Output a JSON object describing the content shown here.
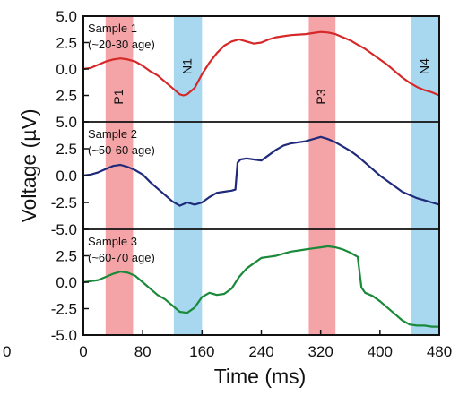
{
  "chart_data": {
    "type": "line",
    "xlabel": "Time (ms)",
    "ylabel": "Voltage (µV)",
    "x_ticks": [
      0,
      80,
      160,
      240,
      320,
      400,
      480
    ],
    "xlim": [
      0,
      480
    ],
    "y_ticks": [
      "-5.0",
      "-2.5",
      "0.0",
      "2.5",
      "5.0"
    ],
    "ylim": [
      -5,
      5
    ],
    "clipped_left_tick": "0",
    "bands": [
      {
        "label": "P1",
        "start": 30,
        "end": 67,
        "color": "#f4a3a6"
      },
      {
        "label": "N1",
        "start": 122,
        "end": 160,
        "color": "#a8d8f0"
      },
      {
        "label": "P3",
        "start": 304,
        "end": 340,
        "color": "#f4a3a6"
      },
      {
        "label": "N4",
        "start": 442,
        "end": 480,
        "color": "#a8d8f0"
      }
    ],
    "panels": [
      {
        "annotation_line1": "Sample 1",
        "annotation_line2": "(~20-30 age)",
        "color": "#d62828",
        "x": [
          0,
          10,
          20,
          30,
          40,
          50,
          60,
          70,
          80,
          90,
          100,
          110,
          120,
          130,
          135,
          140,
          150,
          160,
          170,
          180,
          190,
          200,
          210,
          220,
          230,
          240,
          250,
          260,
          270,
          280,
          290,
          300,
          310,
          320,
          330,
          340,
          350,
          360,
          370,
          380,
          390,
          400,
          410,
          420,
          430,
          440,
          450,
          460,
          470,
          480
        ],
        "y": [
          0.0,
          0.1,
          0.4,
          0.7,
          0.9,
          1.0,
          0.9,
          0.7,
          0.3,
          -0.2,
          -0.6,
          -1.2,
          -1.8,
          -2.4,
          -2.5,
          -2.4,
          -1.8,
          -0.5,
          0.6,
          1.5,
          2.2,
          2.6,
          2.8,
          2.6,
          2.4,
          2.5,
          2.8,
          3.0,
          3.1,
          3.2,
          3.25,
          3.3,
          3.4,
          3.5,
          3.45,
          3.3,
          3.0,
          2.7,
          2.3,
          1.9,
          1.4,
          0.9,
          0.4,
          -0.2,
          -0.8,
          -1.3,
          -1.7,
          -2.0,
          -2.2,
          -2.5
        ]
      },
      {
        "annotation_line1": "Sample 2",
        "annotation_line2": "(~50-60 age)",
        "color": "#1f2a7a",
        "x": [
          0,
          10,
          20,
          30,
          40,
          50,
          60,
          70,
          80,
          90,
          100,
          110,
          120,
          130,
          140,
          150,
          160,
          170,
          180,
          190,
          200,
          205,
          208,
          212,
          220,
          230,
          240,
          250,
          260,
          270,
          280,
          290,
          300,
          310,
          320,
          330,
          340,
          350,
          360,
          370,
          380,
          390,
          400,
          410,
          420,
          430,
          440,
          450,
          460,
          470,
          480
        ],
        "y": [
          0.0,
          0.1,
          0.3,
          0.6,
          0.9,
          1.0,
          0.8,
          0.5,
          0.1,
          -0.6,
          -1.2,
          -1.8,
          -2.4,
          -2.8,
          -2.5,
          -2.7,
          -2.5,
          -2.0,
          -1.6,
          -1.5,
          -1.4,
          -1.3,
          1.2,
          1.5,
          1.6,
          1.5,
          1.4,
          1.9,
          2.4,
          2.8,
          3.0,
          3.1,
          3.2,
          3.4,
          3.6,
          3.4,
          3.1,
          2.7,
          2.3,
          1.8,
          1.2,
          0.6,
          0.0,
          -0.5,
          -1.0,
          -1.5,
          -1.8,
          -2.1,
          -2.3,
          -2.5,
          -2.7
        ]
      },
      {
        "annotation_line1": "Sample 3",
        "annotation_line2": "(~60-70 age)",
        "color": "#1a8a3a",
        "x": [
          0,
          10,
          20,
          30,
          40,
          50,
          60,
          70,
          80,
          90,
          100,
          110,
          120,
          130,
          140,
          150,
          160,
          170,
          180,
          190,
          200,
          210,
          220,
          230,
          240,
          250,
          260,
          270,
          280,
          290,
          300,
          310,
          320,
          330,
          340,
          350,
          360,
          370,
          375,
          380,
          390,
          400,
          410,
          420,
          430,
          440,
          450,
          460,
          470,
          480
        ],
        "y": [
          0.0,
          0.1,
          0.2,
          0.5,
          0.8,
          1.0,
          0.9,
          0.6,
          0.0,
          -0.6,
          -1.2,
          -1.6,
          -2.2,
          -2.8,
          -2.9,
          -2.4,
          -1.4,
          -1.0,
          -1.2,
          -1.1,
          -0.6,
          0.5,
          1.3,
          1.8,
          2.3,
          2.4,
          2.5,
          2.7,
          2.9,
          3.0,
          3.1,
          3.2,
          3.3,
          3.4,
          3.3,
          3.1,
          2.8,
          2.4,
          -0.5,
          -1.0,
          -1.3,
          -1.8,
          -2.4,
          -3.0,
          -3.6,
          -4.0,
          -4.1,
          -4.1,
          -4.2,
          -4.2
        ]
      }
    ]
  }
}
